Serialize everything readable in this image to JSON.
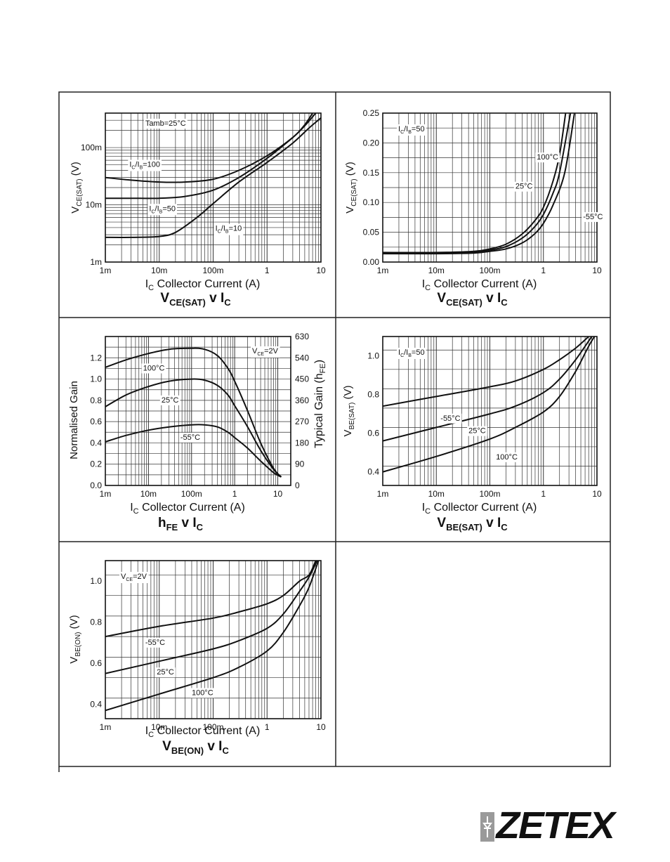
{
  "page": {
    "logo": "ZETEX"
  },
  "charts": [
    {
      "id": "vcesat-log",
      "type": "line",
      "title_main": "V",
      "title_sub": "CE(SAT)",
      "title_rest": " v I",
      "title_sub2": "C",
      "xlabel_main": "I",
      "xlabel_sub": "C",
      "xlabel_rest": "   Collector Current (A)",
      "ylabel_main": "V",
      "ylabel_sub": "CE(SAT)",
      "ylabel_rest": "  (V)",
      "x_scale": "log",
      "y_scale": "log",
      "xlim": [
        0.001,
        10
      ],
      "ylim": [
        0.001,
        0.4
      ],
      "x_ticks": [
        {
          "v": 0.001,
          "label": "1m"
        },
        {
          "v": 0.01,
          "label": "10m"
        },
        {
          "v": 0.1,
          "label": "100m"
        },
        {
          "v": 1,
          "label": "1"
        },
        {
          "v": 10,
          "label": "10"
        }
      ],
      "y_ticks": [
        {
          "v": 0.001,
          "label": "1m"
        },
        {
          "v": 0.01,
          "label": "10m"
        },
        {
          "v": 0.1,
          "label": "100m"
        }
      ],
      "annotations": [
        {
          "text": "Tamb=25°C",
          "x": 0.0055,
          "y": 0.24
        }
      ],
      "series": [
        {
          "name": "IC/IB=100",
          "x": [
            0.001,
            0.003,
            0.01,
            0.03,
            0.1,
            0.3,
            1,
            3,
            5,
            7
          ],
          "y": [
            0.03,
            0.027,
            0.025,
            0.025,
            0.028,
            0.04,
            0.072,
            0.15,
            0.25,
            0.4
          ]
        },
        {
          "name": "IC/IB=50",
          "x": [
            0.001,
            0.003,
            0.01,
            0.03,
            0.1,
            0.3,
            1,
            3,
            5,
            8
          ],
          "y": [
            0.013,
            0.013,
            0.013,
            0.014,
            0.018,
            0.03,
            0.065,
            0.15,
            0.24,
            0.4
          ]
        },
        {
          "name": "IC/IB=10",
          "x": [
            0.001,
            0.003,
            0.01,
            0.02,
            0.05,
            0.1,
            0.3,
            1,
            3,
            6,
            10
          ],
          "y": [
            0.0027,
            0.0027,
            0.0028,
            0.0033,
            0.006,
            0.0105,
            0.025,
            0.055,
            0.12,
            0.22,
            0.33
          ]
        }
      ],
      "series_labels": [
        {
          "main": "I",
          "sub": "C",
          "mid": "/I",
          "sub2": "B",
          "rest": "=100",
          "x": 0.0028,
          "y": 0.046
        },
        {
          "main": "I",
          "sub": "C",
          "mid": "/I",
          "sub2": "B",
          "rest": "=50",
          "x": 0.0065,
          "y": 0.0078
        },
        {
          "main": "I",
          "sub": "C",
          "mid": "/I",
          "sub2": "B",
          "rest": "=10",
          "x": 0.11,
          "y": 0.0035
        }
      ]
    },
    {
      "id": "vcesat-lin",
      "type": "line",
      "title_main": "V",
      "title_sub": "CE(SAT)",
      "title_rest": " v I",
      "title_sub2": "C",
      "xlabel_main": "I",
      "xlabel_sub": "C",
      "xlabel_rest": "   Collector Current (A)",
      "ylabel_main": "V",
      "ylabel_sub": "CE(SAT)",
      "ylabel_rest": "  (V)",
      "x_scale": "log",
      "y_scale": "linear",
      "xlim": [
        0.001,
        10
      ],
      "ylim": [
        0,
        0.25
      ],
      "x_ticks": [
        {
          "v": 0.001,
          "label": "1m"
        },
        {
          "v": 0.01,
          "label": "10m"
        },
        {
          "v": 0.1,
          "label": "100m"
        },
        {
          "v": 1,
          "label": "1"
        },
        {
          "v": 10,
          "label": "10"
        }
      ],
      "y_ticks": [
        {
          "v": 0,
          "label": "0.00"
        },
        {
          "v": 0.05,
          "label": "0.05"
        },
        {
          "v": 0.1,
          "label": "0.10"
        },
        {
          "v": 0.15,
          "label": "0.15"
        },
        {
          "v": 0.2,
          "label": "0.20"
        },
        {
          "v": 0.25,
          "label": "0.25"
        }
      ],
      "annotations": [],
      "series": [
        {
          "name": "100°C",
          "x": [
            0.001,
            0.01,
            0.05,
            0.1,
            0.2,
            0.4,
            0.7,
            1,
            1.5,
            2,
            2.6
          ],
          "y": [
            0.016,
            0.016,
            0.018,
            0.022,
            0.03,
            0.047,
            0.07,
            0.092,
            0.135,
            0.18,
            0.25
          ]
        },
        {
          "name": "25°C",
          "x": [
            0.001,
            0.01,
            0.05,
            0.1,
            0.2,
            0.4,
            0.7,
            1,
            1.5,
            2,
            3.2
          ],
          "y": [
            0.015,
            0.015,
            0.017,
            0.02,
            0.026,
            0.04,
            0.06,
            0.08,
            0.115,
            0.15,
            0.25
          ]
        },
        {
          "name": "-55°C",
          "x": [
            0.001,
            0.01,
            0.05,
            0.1,
            0.2,
            0.4,
            0.7,
            1,
            1.5,
            2.5,
            3.8
          ],
          "y": [
            0.014,
            0.014,
            0.015,
            0.018,
            0.022,
            0.032,
            0.048,
            0.065,
            0.095,
            0.15,
            0.25
          ]
        }
      ],
      "series_labels": [
        {
          "main": "100°C",
          "x": 0.75,
          "y": 0.172
        },
        {
          "main": "25°C",
          "x": 0.3,
          "y": 0.123
        },
        {
          "main": "-55°C",
          "x": 5.5,
          "y": 0.072
        }
      ],
      "legend_note": {
        "main": "I",
        "sub": "C",
        "mid": "/I",
        "sub2": "B",
        "rest": "=50"
      }
    },
    {
      "id": "hfe",
      "type": "line",
      "title_main": "h",
      "title_sub": "FE",
      "title_rest": " v I",
      "title_sub2": "C",
      "xlabel_main": "I",
      "xlabel_sub": "C",
      "xlabel_rest": "   Collector Current (A)",
      "ylabel_main": "Normalised Gain",
      "ylabel_sub": "",
      "ylabel_rest": "",
      "y2label_main": "Typical Gain (h",
      "y2label_sub": "FE",
      "y2label_rest": ")",
      "x_scale": "log",
      "y_scale": "linear",
      "xlim": [
        0.001,
        20
      ],
      "ylim": [
        0,
        1.4
      ],
      "x_ticks": [
        {
          "v": 0.001,
          "label": "1m"
        },
        {
          "v": 0.01,
          "label": "10m"
        },
        {
          "v": 0.1,
          "label": "100m"
        },
        {
          "v": 1,
          "label": "1"
        },
        {
          "v": 10,
          "label": "10"
        }
      ],
      "y_ticks": [
        {
          "v": 0,
          "label": "0.0"
        },
        {
          "v": 0.2,
          "label": "0.2"
        },
        {
          "v": 0.4,
          "label": "0.4"
        },
        {
          "v": 0.6,
          "label": "0.6"
        },
        {
          "v": 0.8,
          "label": "0.8"
        },
        {
          "v": 1.0,
          "label": "1.0"
        },
        {
          "v": 1.2,
          "label": "1.2"
        }
      ],
      "y2_ticks": [
        {
          "v": 0,
          "label": "0"
        },
        {
          "v": 0.2,
          "label": "90"
        },
        {
          "v": 0.4,
          "label": "180"
        },
        {
          "v": 0.6,
          "label": "270"
        },
        {
          "v": 0.8,
          "label": "360"
        },
        {
          "v": 1.0,
          "label": "450"
        },
        {
          "v": 1.2,
          "label": "540"
        },
        {
          "v": 1.4,
          "label": "630"
        }
      ],
      "annotations": [],
      "series": [
        {
          "name": "100°C",
          "x": [
            0.001,
            0.003,
            0.01,
            0.03,
            0.1,
            0.2,
            0.4,
            0.7,
            1,
            2,
            4,
            8,
            12
          ],
          "y": [
            1.11,
            1.18,
            1.24,
            1.28,
            1.29,
            1.28,
            1.22,
            1.1,
            0.98,
            0.7,
            0.4,
            0.16,
            0.08
          ]
        },
        {
          "name": "25°C",
          "x": [
            0.001,
            0.003,
            0.01,
            0.03,
            0.1,
            0.2,
            0.4,
            0.7,
            1,
            2,
            4,
            8,
            12
          ],
          "y": [
            0.74,
            0.85,
            0.93,
            0.98,
            1.0,
            0.99,
            0.94,
            0.85,
            0.75,
            0.55,
            0.33,
            0.15,
            0.08
          ]
        },
        {
          "name": "-55°C",
          "x": [
            0.001,
            0.003,
            0.01,
            0.03,
            0.1,
            0.2,
            0.4,
            0.7,
            1,
            2,
            4,
            8,
            12
          ],
          "y": [
            0.41,
            0.47,
            0.52,
            0.55,
            0.57,
            0.57,
            0.55,
            0.5,
            0.45,
            0.35,
            0.23,
            0.12,
            0.08
          ]
        }
      ],
      "series_labels": [
        {
          "main": "100°C",
          "x": 0.0075,
          "y": 1.08
        },
        {
          "main": "25°C",
          "x": 0.02,
          "y": 0.78
        },
        {
          "main": "-55°C",
          "x": 0.055,
          "y": 0.43
        }
      ],
      "legend_note": {
        "main": "V",
        "sub": "CE",
        "mid": "",
        "sub2": "",
        "rest": "=2V"
      }
    },
    {
      "id": "vbesat",
      "type": "line",
      "title_main": "V",
      "title_sub": "BE(SAT)",
      "title_rest": " v I",
      "title_sub2": "C",
      "xlabel_main": "I",
      "xlabel_sub": "C",
      "xlabel_rest": "   Collector Current (A)",
      "ylabel_main": "V",
      "ylabel_sub": "BE(SAT)",
      "ylabel_rest": "  (V)",
      "x_scale": "log",
      "y_scale": "linear",
      "xlim": [
        0.001,
        10
      ],
      "ylim": [
        0.33,
        1.1
      ],
      "x_ticks": [
        {
          "v": 0.001,
          "label": "1m"
        },
        {
          "v": 0.01,
          "label": "10m"
        },
        {
          "v": 0.1,
          "label": "100m"
        },
        {
          "v": 1,
          "label": "1"
        },
        {
          "v": 10,
          "label": "10"
        }
      ],
      "y_ticks": [
        {
          "v": 0.4,
          "label": "0.4"
        },
        {
          "v": 0.6,
          "label": "0.6"
        },
        {
          "v": 0.8,
          "label": "0.8"
        },
        {
          "v": 1.0,
          "label": "1.0"
        }
      ],
      "annotations": [],
      "series": [
        {
          "name": "-55°C",
          "x": [
            0.001,
            0.01,
            0.1,
            0.3,
            1,
            2,
            4,
            7
          ],
          "y": [
            0.74,
            0.79,
            0.84,
            0.87,
            0.93,
            0.98,
            1.04,
            1.1
          ]
        },
        {
          "name": "25°C",
          "x": [
            0.001,
            0.01,
            0.1,
            0.3,
            1,
            2,
            4,
            8
          ],
          "y": [
            0.56,
            0.63,
            0.7,
            0.74,
            0.81,
            0.88,
            0.98,
            1.1
          ]
        },
        {
          "name": "100°C",
          "x": [
            0.001,
            0.01,
            0.1,
            0.3,
            1,
            2,
            4,
            7,
            9
          ],
          "y": [
            0.4,
            0.48,
            0.57,
            0.63,
            0.71,
            0.79,
            0.92,
            1.05,
            1.1
          ]
        }
      ],
      "series_labels": [
        {
          "main": "-55°C",
          "x": 0.012,
          "y": 0.665
        },
        {
          "main": "25°C",
          "x": 0.04,
          "y": 0.6
        },
        {
          "main": "100°C",
          "x": 0.13,
          "y": 0.465
        }
      ],
      "legend_note": {
        "main": "I",
        "sub": "C",
        "mid": "/I",
        "sub2": "B",
        "rest": "=50"
      }
    },
    {
      "id": "vbeon",
      "type": "line",
      "title_main": "V",
      "title_sub": "BE(ON)",
      "title_rest": " v I",
      "title_sub2": "C",
      "xlabel_main": "I",
      "xlabel_sub": "C",
      "xlabel_rest": "   Collector Current (A)",
      "ylabel_main": "V",
      "ylabel_sub": "BE(ON)",
      "ylabel_rest": " (V)",
      "x_scale": "log",
      "y_scale": "linear",
      "xlim": [
        0.001,
        10
      ],
      "ylim": [
        0.33,
        1.1
      ],
      "x_ticks": [
        {
          "v": 0.001,
          "label": "1m"
        },
        {
          "v": 0.01,
          "label": "10m"
        },
        {
          "v": 0.1,
          "label": "100m"
        },
        {
          "v": 1,
          "label": "1"
        },
        {
          "v": 10,
          "label": "10"
        }
      ],
      "y_ticks": [
        {
          "v": 0.4,
          "label": "0.4"
        },
        {
          "v": 0.6,
          "label": "0.6"
        },
        {
          "v": 0.8,
          "label": "0.8"
        },
        {
          "v": 1.0,
          "label": "1.0"
        }
      ],
      "annotations": [],
      "series": [
        {
          "name": "-55°C",
          "x": [
            0.001,
            0.01,
            0.1,
            0.3,
            1,
            2,
            4,
            6,
            8
          ],
          "y": [
            0.73,
            0.78,
            0.82,
            0.85,
            0.89,
            0.93,
            1.0,
            1.03,
            1.1
          ]
        },
        {
          "name": "25°C",
          "x": [
            0.001,
            0.01,
            0.1,
            0.3,
            1,
            2,
            4,
            6,
            8.5
          ],
          "y": [
            0.55,
            0.61,
            0.67,
            0.71,
            0.77,
            0.84,
            0.95,
            1.02,
            1.1
          ]
        },
        {
          "name": "100°C",
          "x": [
            0.001,
            0.01,
            0.1,
            0.3,
            1,
            2,
            4,
            6,
            9
          ],
          "y": [
            0.37,
            0.45,
            0.53,
            0.58,
            0.66,
            0.75,
            0.88,
            0.97,
            1.1
          ]
        }
      ],
      "series_labels": [
        {
          "main": "-55°C",
          "x": 0.0055,
          "y": 0.69
        },
        {
          "main": "25°C",
          "x": 0.009,
          "y": 0.545
        },
        {
          "main": "100°C",
          "x": 0.04,
          "y": 0.445
        }
      ],
      "legend_note": {
        "main": "V",
        "sub": "CE",
        "mid": "",
        "sub2": "",
        "rest": "=2V"
      }
    }
  ]
}
